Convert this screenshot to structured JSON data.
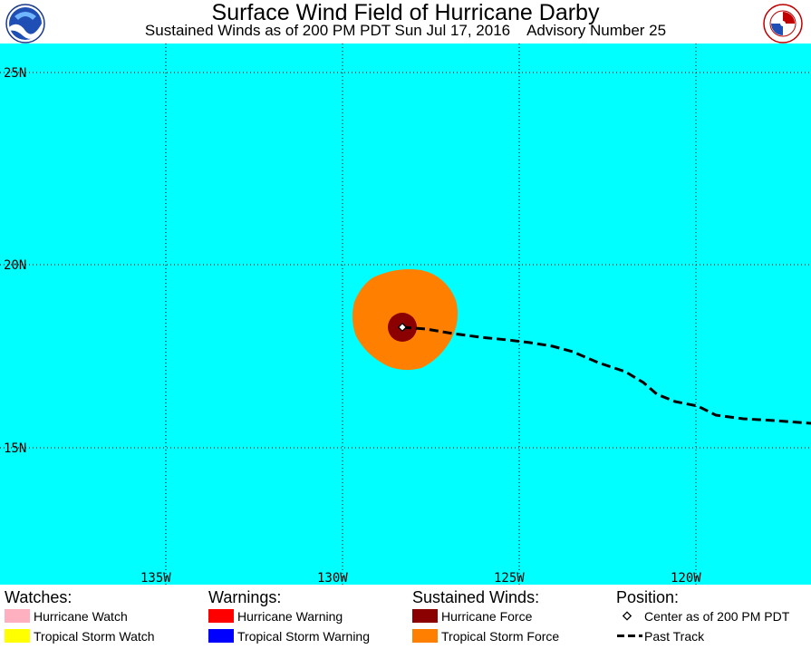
{
  "header": {
    "title": "Surface Wind Field of Hurricane Darby",
    "subtitle": "Sustained Winds as of 200 PM PDT Sun Jul 17, 2016    Advisory Number 25",
    "left_logo": "noaa-logo",
    "right_logo": "national-weather-service-logo"
  },
  "colors": {
    "ocean": "#00ffff",
    "tropical_storm_force": "#ff8000",
    "hurricane_force": "#8b0000",
    "hurricane_watch": "#ffb0c0",
    "tropical_storm_watch": "#ffff00",
    "hurricane_warning": "#ff0000",
    "tropical_storm_warning": "#0000ff",
    "grid": "#000000"
  },
  "map": {
    "lat_labels": [
      "25N",
      "20N",
      "15N"
    ],
    "lon_labels": [
      "135W",
      "130W",
      "125W",
      "120W"
    ],
    "center_lat": 18.3,
    "center_lon": -128.4
  },
  "legend": {
    "watches": {
      "heading": "Watches:",
      "items": [
        "Hurricane Watch",
        "Tropical Storm Watch"
      ]
    },
    "warnings": {
      "heading": "Warnings:",
      "items": [
        "Hurricane Warning",
        "Tropical Storm Warning"
      ]
    },
    "winds": {
      "heading": "Sustained Winds:",
      "items": [
        "Hurricane Force",
        "Tropical Storm Force"
      ]
    },
    "position": {
      "heading": "Position:",
      "items": [
        "Center as of 200 PM PDT",
        "Past Track"
      ]
    }
  }
}
